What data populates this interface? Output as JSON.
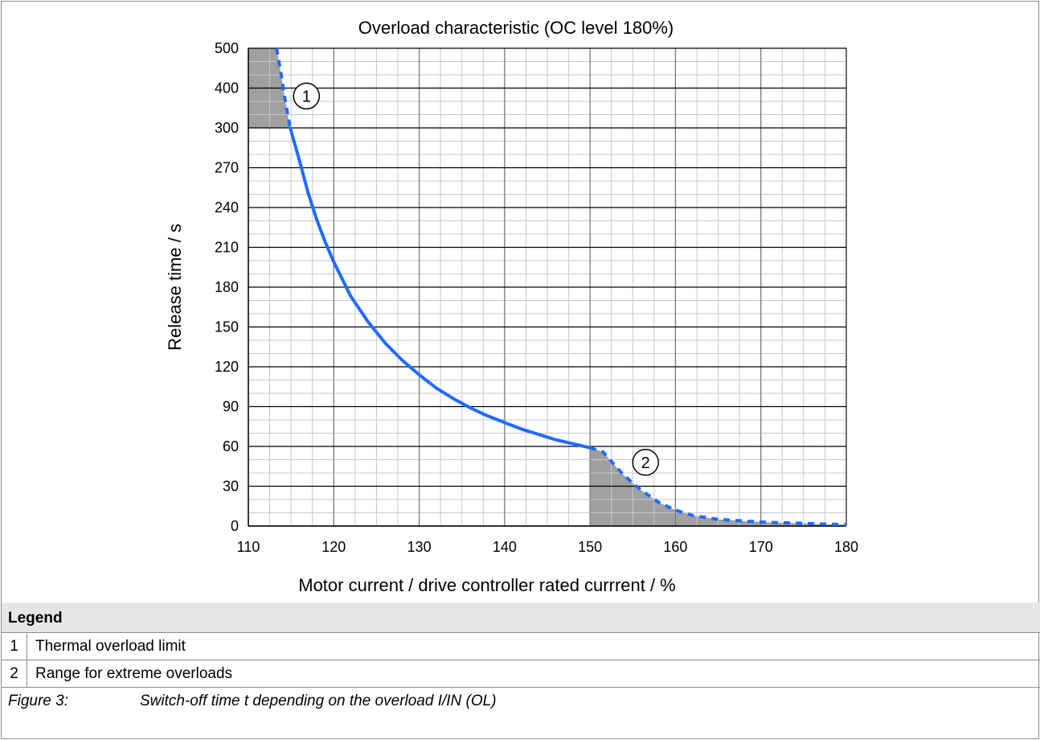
{
  "chart_data": {
    "type": "line",
    "title": "Overload characteristic (OC level 180%)",
    "xlabel": "Motor current / drive controller rated currrent / %",
    "ylabel": "Release time / s",
    "xlim": [
      110,
      180
    ],
    "x_ticks": [
      "110",
      "120",
      "130",
      "140",
      "150",
      "160",
      "170",
      "180"
    ],
    "y_ticks": [
      "0",
      "30",
      "60",
      "90",
      "120",
      "150",
      "180",
      "210",
      "240",
      "270",
      "300",
      "400",
      "500"
    ],
    "y_scale_note": "piecewise: 0–300 linear in steps of 30, then 300–500 in steps of 100 with same tick spacing",
    "grid": true,
    "series": [
      {
        "style": "solid",
        "color": "#1f6bff",
        "x": [
          114.9,
          116,
          117,
          118,
          119,
          120,
          122,
          124,
          126,
          128,
          130,
          132,
          134,
          136,
          138,
          140,
          142,
          144,
          146,
          148,
          150
        ],
        "y": [
          300,
          275,
          251,
          231,
          214,
          199,
          173,
          154,
          138,
          125,
          114,
          104,
          96,
          89,
          83,
          78,
          73,
          69,
          65,
          62,
          59
        ]
      },
      {
        "style": "dashed",
        "color": "#1f6bff",
        "x": [
          113.3,
          113.8,
          114.3,
          114.9
        ],
        "y": [
          500,
          440,
          370,
          300
        ]
      },
      {
        "style": "dashed",
        "color": "#1f6bff",
        "x": [
          150,
          151.5,
          153,
          154,
          156,
          158,
          160,
          162,
          165,
          170,
          175,
          180
        ],
        "y": [
          59,
          56,
          45,
          38,
          27,
          18,
          12,
          8,
          5,
          3,
          2,
          1
        ]
      }
    ],
    "shaded_regions": [
      {
        "label": "1",
        "x": [
          110,
          115
        ],
        "y": [
          300,
          500
        ]
      },
      {
        "label": "2",
        "x": [
          150,
          180
        ],
        "y": [
          0,
          60
        ]
      }
    ],
    "annotations": [
      "1",
      "2"
    ]
  },
  "legend": {
    "title": "Legend",
    "items": [
      {
        "num": "1",
        "text": "Thermal overload limit"
      },
      {
        "num": "2",
        "text": "Range for extreme overloads"
      }
    ]
  },
  "caption": {
    "label": "Figure 3:",
    "text": "Switch-off time t depending on the overload I/IN (OL)"
  }
}
